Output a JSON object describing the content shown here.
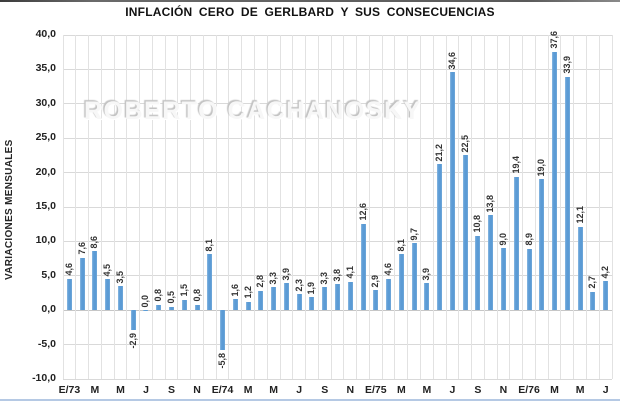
{
  "chart": {
    "title": "INFLACIÓN CERO DE GERLBARD Y SUS CONSECUENCIAS",
    "ylabel": "VARIACIONES MENSUALES",
    "watermark": "ROBERTO CACHANOSKY"
  },
  "chart_data": {
    "type": "bar",
    "title": "INFLACIÓN CERO DE GERLBARD Y SUS CONSECUENCIAS",
    "xlabel": "",
    "ylabel": "VARIACIONES MENSUALES",
    "ylim": [
      -10,
      40
    ],
    "ytick_step": 5,
    "ytick_labels": [
      "40,0",
      "35,0",
      "30,0",
      "25,0",
      "20,0",
      "15,0",
      "10,0",
      "5,0",
      "0,0",
      "-5,0",
      "-10,0"
    ],
    "grid": "horizontal and vertical, light gray",
    "legend": "none",
    "bar_color": "#5B9BD5",
    "x_labels": [
      "E/73",
      "",
      "M",
      "",
      "M",
      "",
      "J",
      "",
      "S",
      "",
      "N",
      "",
      "E/74",
      "",
      "M",
      "",
      "M",
      "",
      "J",
      "",
      "S",
      "",
      "N",
      "",
      "E/75",
      "",
      "M",
      "",
      "M",
      "",
      "J",
      "",
      "S",
      "",
      "N",
      "",
      "E/76",
      "",
      "M",
      "",
      "M",
      "",
      "J"
    ],
    "values": [
      4.6,
      7.6,
      8.6,
      4.5,
      3.5,
      -2.9,
      0.0,
      0.8,
      0.5,
      1.5,
      0.8,
      8.1,
      -5.8,
      1.6,
      1.2,
      2.8,
      3.3,
      3.9,
      2.3,
      1.9,
      3.3,
      3.8,
      4.1,
      12.6,
      2.9,
      4.6,
      8.1,
      9.7,
      3.9,
      21.2,
      34.6,
      22.5,
      10.8,
      13.8,
      9.0,
      19.4,
      8.9,
      19.0,
      37.6,
      33.9,
      12.1,
      2.7,
      4.2
    ],
    "value_labels": [
      "4,6",
      "7,6",
      "8,6",
      "4,5",
      "3,5",
      "-2,9",
      "0,0",
      "0,8",
      "0,5",
      "1,5",
      "0,8",
      "8,1",
      "-5,8",
      "1,6",
      "1,2",
      "2,8",
      "3,3",
      "3,9",
      "2,3",
      "1,9",
      "3,3",
      "3,8",
      "4,1",
      "12,6",
      "2,9",
      "4,6",
      "8,1",
      "9,7",
      "3,9",
      "21,2",
      "34,6",
      "22,5",
      "10,8",
      "13,8",
      "9,0",
      "19,4",
      "8,9",
      "19,0",
      "37,6",
      "33,9",
      "12,1",
      "2,7",
      "4,2"
    ]
  }
}
